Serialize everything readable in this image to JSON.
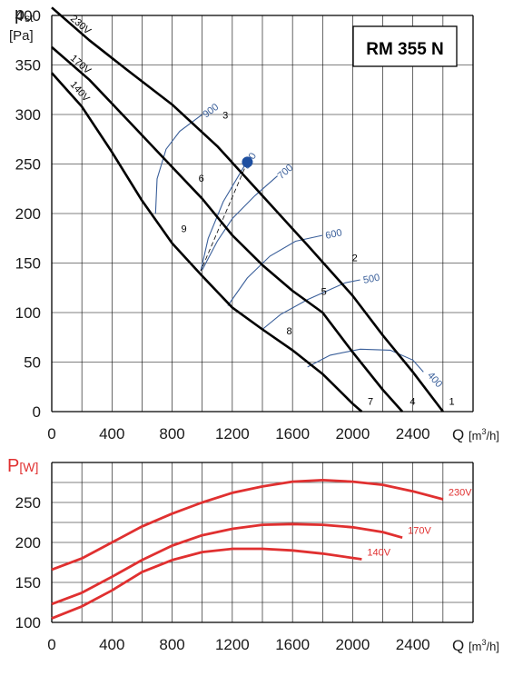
{
  "title": "RM 355 N",
  "top_chart": {
    "ylabel_main": "p",
    "ylabel_sub": "st",
    "ylabel_unit": "[Pa]",
    "xlabel": "Q",
    "xunit_a": "[m",
    "xunit_sup": "3",
    "xunit_b": "/h]"
  },
  "bottom_chart": {
    "ylabel": "P",
    "ylabel_unit": "[W]",
    "xlabel": "Q",
    "xunit_a": "[m",
    "xunit_sup": "3",
    "xunit_b": "/h]"
  },
  "colors": {
    "fan_curve": "#000000",
    "sound_curve": "#3a5f9a",
    "power_curve": "#e03030",
    "operating_point": "#1e4fa0",
    "grid": "#000000"
  },
  "chart_data": [
    {
      "type": "line",
      "title": "RM 355 N",
      "xlabel": "Q [m3/h]",
      "ylabel": "pst [Pa]",
      "xlim": [
        0,
        2800
      ],
      "ylim": [
        0,
        400
      ],
      "x_ticks": [
        0,
        400,
        800,
        1200,
        1600,
        2000,
        2400
      ],
      "y_ticks": [
        0,
        50,
        100,
        150,
        200,
        250,
        300,
        350,
        400
      ],
      "grid": true,
      "series": [
        {
          "name": "230V",
          "x": [
            0,
            250,
            500,
            800,
            1100,
            1400,
            1700,
            2000,
            2200,
            2400,
            2600
          ],
          "y": [
            408,
            375,
            345,
            310,
            268,
            218,
            168,
            117,
            77,
            40,
            0
          ]
        },
        {
          "name": "170V",
          "x": [
            0,
            250,
            500,
            750,
            1000,
            1200,
            1400,
            1600,
            1800,
            2000,
            2200,
            2330
          ],
          "y": [
            368,
            335,
            295,
            255,
            215,
            178,
            148,
            122,
            100,
            60,
            22,
            0
          ]
        },
        {
          "name": "140V",
          "x": [
            0,
            200,
            400,
            600,
            800,
            1000,
            1200,
            1400,
            1600,
            1800,
            2000,
            2060
          ],
          "y": [
            342,
            308,
            262,
            213,
            170,
            137,
            105,
            83,
            62,
            38,
            8,
            0
          ]
        }
      ],
      "sound_curves": [
        {
          "label": "900",
          "x": [
            690,
            700,
            760,
            850,
            1000
          ],
          "y": [
            200,
            235,
            265,
            283,
            300
          ]
        },
        {
          "label": "800",
          "x": [
            990,
            1040,
            1140,
            1280
          ],
          "y": [
            142,
            175,
            212,
            248
          ]
        },
        {
          "label": "700",
          "x": [
            1000,
            1100,
            1200,
            1350,
            1500
          ],
          "y": [
            143,
            172,
            195,
            218,
            238
          ]
        },
        {
          "label": "600",
          "x": [
            1170,
            1300,
            1450,
            1620,
            1800
          ],
          "y": [
            107,
            135,
            157,
            172,
            178
          ]
        },
        {
          "label": "500",
          "x": [
            1400,
            1520,
            1700,
            1950,
            2050
          ],
          "y": [
            83,
            98,
            113,
            130,
            133
          ]
        },
        {
          "label": "400",
          "x": [
            1700,
            1850,
            2050,
            2250,
            2400,
            2470
          ],
          "y": [
            45,
            57,
            63,
            62,
            52,
            40
          ]
        }
      ],
      "point_labels": [
        {
          "label": "1",
          "x": 2640,
          "y": 7
        },
        {
          "label": "2",
          "x": 1995,
          "y": 152
        },
        {
          "label": "3",
          "x": 1135,
          "y": 296
        },
        {
          "label": "4",
          "x": 2380,
          "y": 7
        },
        {
          "label": "5",
          "x": 1790,
          "y": 118
        },
        {
          "label": "6",
          "x": 975,
          "y": 232
        },
        {
          "label": "7",
          "x": 2100,
          "y": 7
        },
        {
          "label": "8",
          "x": 1560,
          "y": 78
        },
        {
          "label": "9",
          "x": 860,
          "y": 181
        }
      ],
      "operating_point": {
        "x": 1300,
        "y": 252
      }
    },
    {
      "type": "line",
      "xlabel": "Q [m3/h]",
      "ylabel": "P [W]",
      "xlim": [
        0,
        2800
      ],
      "ylim": [
        100,
        300
      ],
      "x_ticks": [
        0,
        400,
        800,
        1200,
        1600,
        2000,
        2400
      ],
      "y_ticks": [
        100,
        150,
        200,
        250
      ],
      "grid": true,
      "series": [
        {
          "name": "230V",
          "x": [
            0,
            200,
            400,
            600,
            800,
            1000,
            1200,
            1400,
            1600,
            1800,
            2000,
            2200,
            2400,
            2600
          ],
          "y": [
            166,
            180,
            200,
            220,
            236,
            250,
            262,
            270,
            276,
            278,
            276,
            272,
            264,
            254
          ]
        },
        {
          "name": "170V",
          "x": [
            0,
            200,
            400,
            600,
            800,
            1000,
            1200,
            1400,
            1600,
            1800,
            2000,
            2200,
            2330
          ],
          "y": [
            123,
            137,
            157,
            178,
            196,
            209,
            217,
            222,
            223,
            222,
            219,
            213,
            206
          ]
        },
        {
          "name": "140V",
          "x": [
            0,
            200,
            400,
            600,
            800,
            1000,
            1200,
            1400,
            1600,
            1800,
            2060
          ],
          "y": [
            105,
            120,
            140,
            163,
            178,
            188,
            192,
            192,
            190,
            186,
            179
          ]
        }
      ]
    }
  ]
}
